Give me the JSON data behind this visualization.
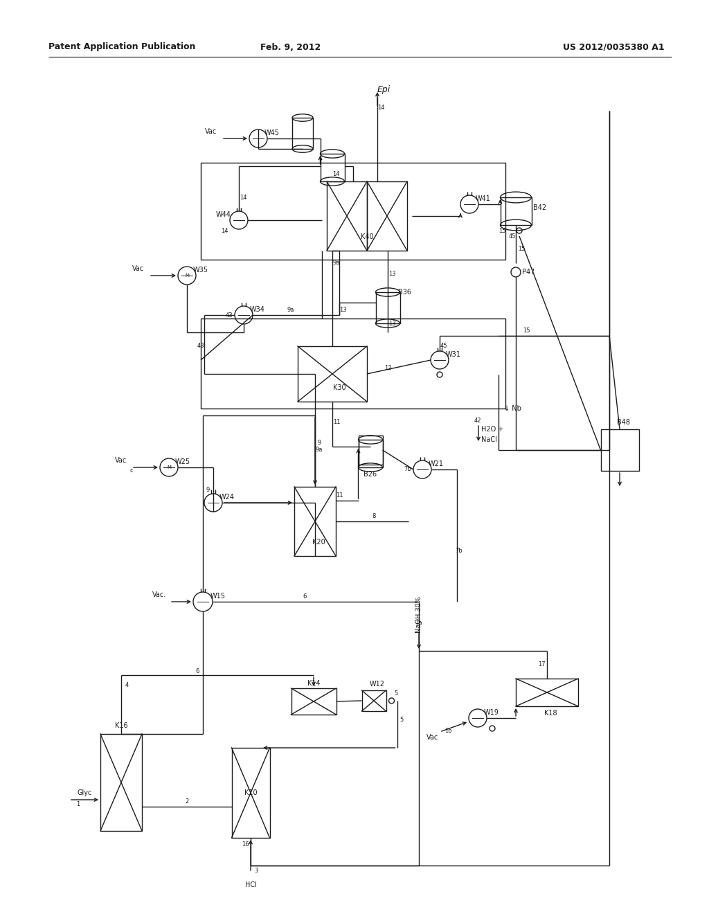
{
  "title_left": "Patent Application Publication",
  "title_center": "Feb. 9, 2012",
  "title_right": "US 2012/0035380 A1",
  "bg_color": "#ffffff",
  "line_color": "#1a1a1a",
  "fig_width": 10.24,
  "fig_height": 13.2
}
